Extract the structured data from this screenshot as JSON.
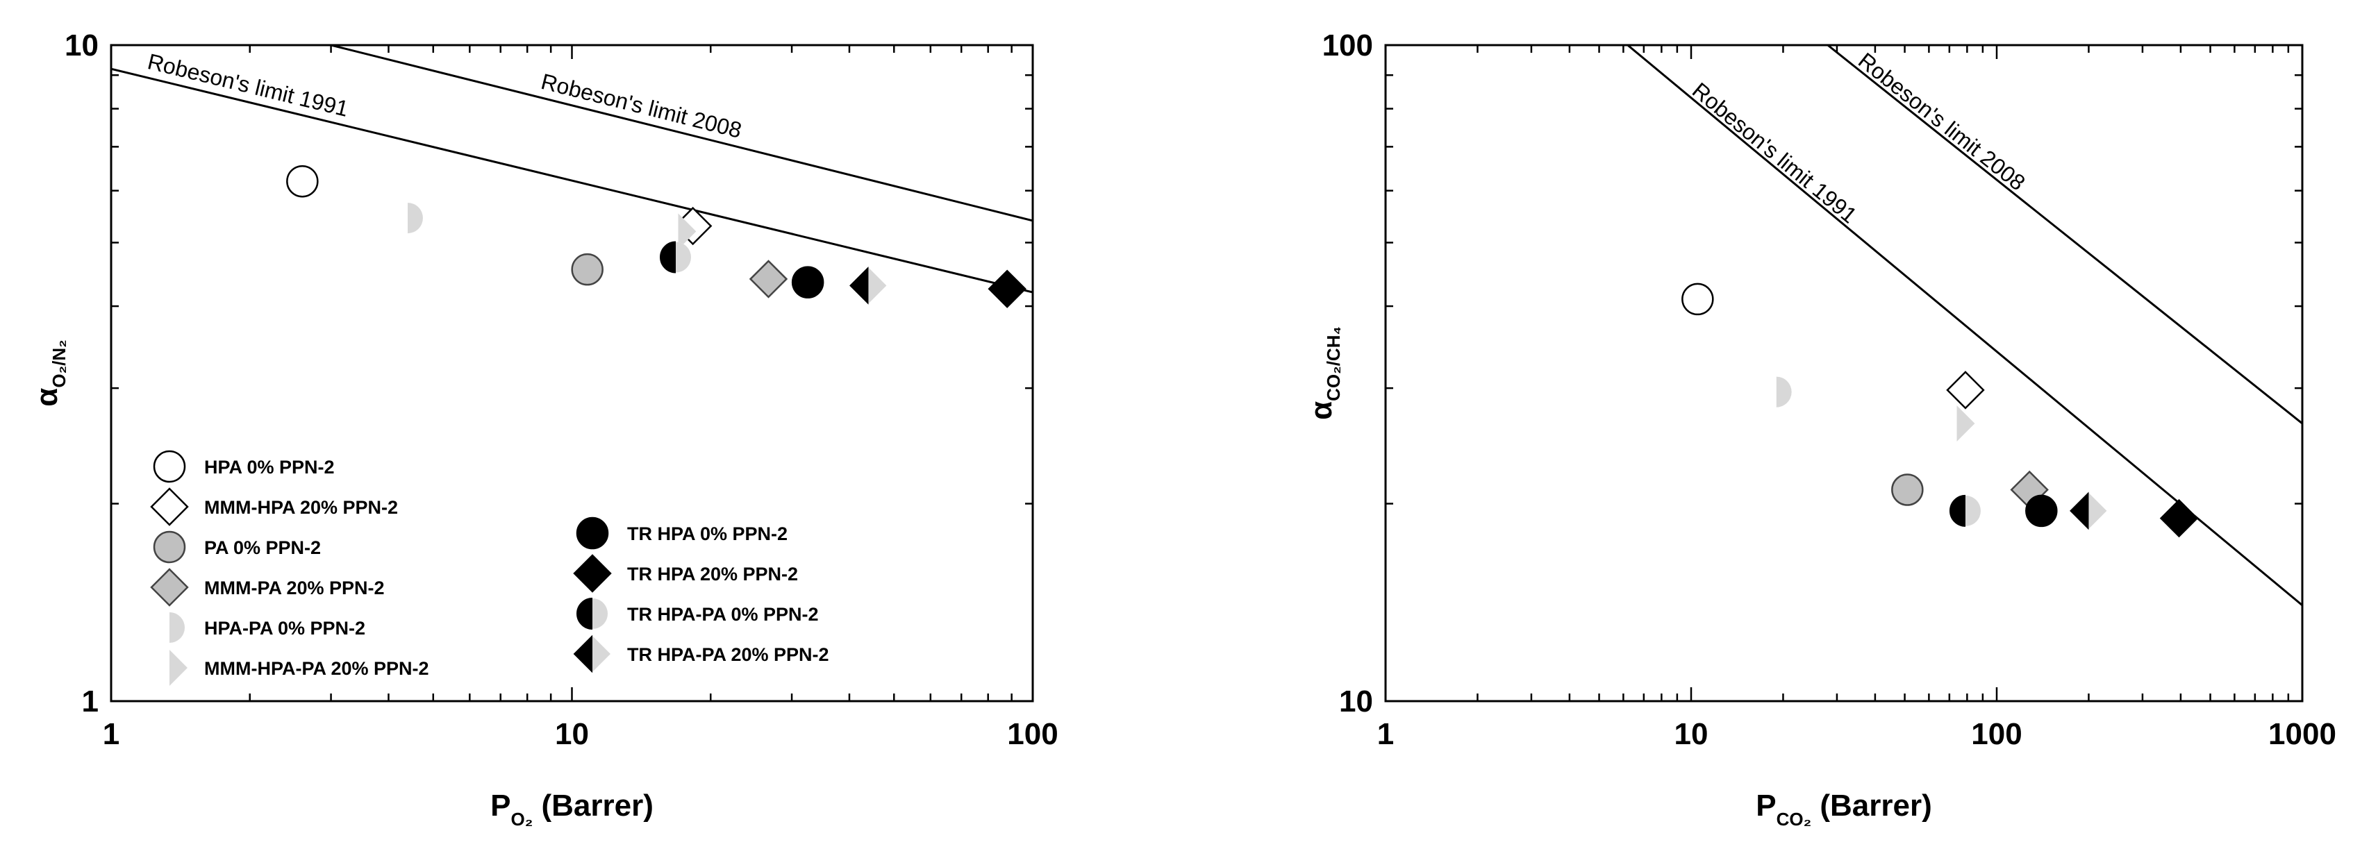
{
  "chart_data": [
    {
      "type": "scatter",
      "x_scale": "log",
      "y_scale": "log",
      "xlim": [
        1,
        100
      ],
      "ylim": [
        1,
        10
      ],
      "xlabel": {
        "main": "P",
        "sub": "O₂",
        "suffix": " (Barrer)"
      },
      "ylabel": {
        "main": "α",
        "sub": "O₂/N₂"
      },
      "x_ticks": [
        1,
        10,
        100
      ],
      "x_tick_labels": [
        "1",
        "10",
        "100"
      ],
      "y_ticks": [
        1,
        10
      ],
      "y_tick_labels": [
        "1",
        "10"
      ],
      "grid": false,
      "lines": [
        {
          "label": "Robeson's limit 1991",
          "points": [
            [
              1,
              9.2
            ],
            [
              100,
              4.2
            ]
          ]
        },
        {
          "label": "Robeson's limit 2008",
          "points": [
            [
              3,
              10
            ],
            [
              100,
              5.4
            ]
          ]
        }
      ],
      "series": [
        {
          "name": "HPA 0% PPN-2",
          "marker": "circle",
          "fill": "white",
          "x": [
            2.6
          ],
          "y": [
            6.2
          ]
        },
        {
          "name": "MMM-HPA 20% PPN-2",
          "marker": "diamond",
          "fill": "white",
          "x": [
            18.3
          ],
          "y": [
            5.3
          ]
        },
        {
          "name": "PA 0% PPN-2",
          "marker": "circle",
          "fill": "gray",
          "x": [
            10.8
          ],
          "y": [
            4.55
          ]
        },
        {
          "name": "MMM-PA 20% PPN-2",
          "marker": "diamond",
          "fill": "gray",
          "x": [
            26.7
          ],
          "y": [
            4.4
          ]
        },
        {
          "name": "HPA-PA 0% PPN-2",
          "marker": "circle",
          "fill": "half-lightgray",
          "x": [
            4.4
          ],
          "y": [
            5.45
          ]
        },
        {
          "name": "MMM-HPA-PA 20% PPN-2",
          "marker": "diamond",
          "fill": "half-lightgray",
          "x": [
            17
          ],
          "y": [
            5.2
          ]
        },
        {
          "name": "TR HPA 0% PPN-2",
          "marker": "circle",
          "fill": "black",
          "x": [
            32.5
          ],
          "y": [
            4.35
          ]
        },
        {
          "name": "TR HPA 20% PPN-2",
          "marker": "diamond",
          "fill": "black",
          "x": [
            88
          ],
          "y": [
            4.25
          ]
        },
        {
          "name": "TR HPA-PA 0% PPN-2",
          "marker": "circle",
          "fill": "half-black",
          "x": [
            16.8
          ],
          "y": [
            4.75
          ]
        },
        {
          "name": "TR HPA-PA 20% PPN-2",
          "marker": "diamond",
          "fill": "half-black",
          "x": [
            44
          ],
          "y": [
            4.3
          ]
        }
      ],
      "legend_placement": "bottom-left"
    },
    {
      "type": "scatter",
      "x_scale": "log",
      "y_scale": "log",
      "xlim": [
        1,
        1000
      ],
      "ylim": [
        10,
        100
      ],
      "xlabel": {
        "main": "P",
        "sub": "CO₂",
        "suffix": " (Barrer)"
      },
      "ylabel": {
        "main": "α",
        "sub": "CO₂/CH₄"
      },
      "x_ticks": [
        1,
        10,
        100,
        1000
      ],
      "x_tick_labels": [
        "1",
        "10",
        "100",
        "1000"
      ],
      "y_ticks": [
        10,
        100
      ],
      "y_tick_labels": [
        "10",
        "100"
      ],
      "grid": false,
      "lines": [
        {
          "label": "Robeson's limit 1991",
          "points": [
            [
              6.2,
              100
            ],
            [
              1000,
              14
            ]
          ]
        },
        {
          "label": "Robeson's limit 2008",
          "points": [
            [
              28,
              100
            ],
            [
              1000,
              26.5
            ]
          ]
        }
      ],
      "series": [
        {
          "name": "HPA 0% PPN-2",
          "marker": "circle",
          "fill": "white",
          "x": [
            10.5
          ],
          "y": [
            41
          ]
        },
        {
          "name": "MMM-HPA 20% PPN-2",
          "marker": "diamond",
          "fill": "white",
          "x": [
            79
          ],
          "y": [
            29.8
          ]
        },
        {
          "name": "PA 0% PPN-2",
          "marker": "circle",
          "fill": "gray",
          "x": [
            51
          ],
          "y": [
            21
          ]
        },
        {
          "name": "MMM-PA 20% PPN-2",
          "marker": "diamond",
          "fill": "gray",
          "x": [
            128
          ],
          "y": [
            21
          ]
        },
        {
          "name": "HPA-PA 0% PPN-2",
          "marker": "circle",
          "fill": "half-lightgray",
          "x": [
            19
          ],
          "y": [
            29.6
          ]
        },
        {
          "name": "MMM-HPA-PA 20% PPN-2",
          "marker": "diamond",
          "fill": "half-lightgray",
          "x": [
            74
          ],
          "y": [
            26.5
          ]
        },
        {
          "name": "TR HPA 0% PPN-2",
          "marker": "circle",
          "fill": "black",
          "x": [
            140
          ],
          "y": [
            19.5
          ]
        },
        {
          "name": "TR HPA 20% PPN-2",
          "marker": "diamond",
          "fill": "black",
          "x": [
            395
          ],
          "y": [
            19
          ]
        },
        {
          "name": "TR HPA-PA 0% PPN-2",
          "marker": "circle",
          "fill": "half-black",
          "x": [
            79
          ],
          "y": [
            19.5
          ]
        },
        {
          "name": "TR HPA-PA 20% PPN-2",
          "marker": "diamond",
          "fill": "half-black",
          "x": [
            200
          ],
          "y": [
            19.5
          ]
        }
      ]
    }
  ],
  "colors": {
    "gray": "#c0c0c0",
    "lightgray": "#d8d8d8",
    "black": "#000000",
    "white": "#ffffff"
  }
}
